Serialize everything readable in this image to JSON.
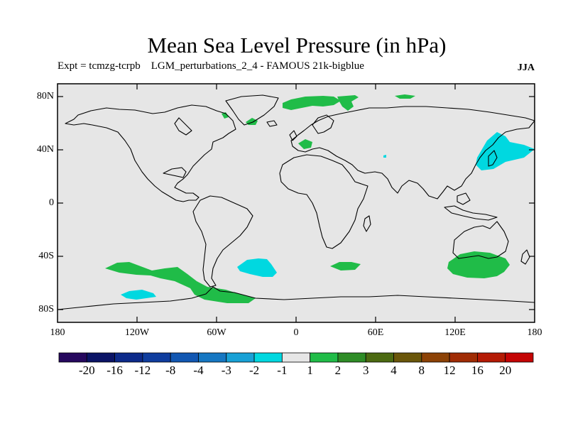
{
  "title": "Mean Sea Level Pressure (in hPa)",
  "subtitle": "Expt = tcmzg-tcrpb    LGM_perturbations_2_4 - FAMOUS 21k-bigblue",
  "season": "JJA",
  "map": {
    "background_color": "#e6e6e6",
    "coastline_color": "#000000",
    "lat_ticks": [
      "80N",
      "40N",
      "0",
      "40S",
      "80S"
    ],
    "lon_ticks": [
      "180",
      "120W",
      "60W",
      "0",
      "60E",
      "120E",
      "180"
    ],
    "lat_values": [
      80,
      40,
      0,
      -40,
      -80
    ],
    "lon_values": [
      -180,
      -120,
      -60,
      0,
      60,
      120,
      180
    ],
    "lat_range": [
      -90,
      90
    ],
    "lon_range": [
      -180,
      180
    ]
  },
  "colorbar": {
    "labels": [
      "-20",
      "-16",
      "-12",
      "-8",
      "-4",
      "-3",
      "-2",
      "-1",
      "1",
      "2",
      "3",
      "4",
      "8",
      "12",
      "16",
      "20"
    ],
    "colors": [
      "#26085e",
      "#0b1466",
      "#0d2a8a",
      "#0f3d9e",
      "#1257b2",
      "#1677c2",
      "#18a1d6",
      "#00d8e0",
      "#e6e6e6",
      "#20bc48",
      "#2e8c26",
      "#4c6a12",
      "#6a560a",
      "#8c4206",
      "#a02c04",
      "#b41a04",
      "#c40404"
    ]
  },
  "regions": [
    {
      "name": "north-atlantic-green-1",
      "level": "1 to 2",
      "color": "#20bc48"
    },
    {
      "name": "north-atlantic-green-2",
      "level": "1 to 2",
      "color": "#20bc48"
    },
    {
      "name": "arctic-green",
      "level": "1 to 2",
      "color": "#20bc48"
    },
    {
      "name": "europe-green",
      "level": "1 to 2",
      "color": "#20bc48"
    },
    {
      "name": "nw-pacific-cyan",
      "level": "-2 to -1",
      "color": "#00d8e0"
    },
    {
      "name": "south-atlantic-cyan",
      "level": "-2 to -1",
      "color": "#00d8e0"
    },
    {
      "name": "south-pacific-green",
      "level": "1 to 2",
      "color": "#20bc48"
    },
    {
      "name": "southern-ocean-green",
      "level": "1 to 2",
      "color": "#20bc48"
    },
    {
      "name": "australia-south-green",
      "level": "1 to 2",
      "color": "#20bc48"
    },
    {
      "name": "south-indian-green",
      "level": "1 to 2",
      "color": "#20bc48"
    },
    {
      "name": "amundsen-cyan",
      "level": "-2 to -1",
      "color": "#00d8e0"
    }
  ]
}
